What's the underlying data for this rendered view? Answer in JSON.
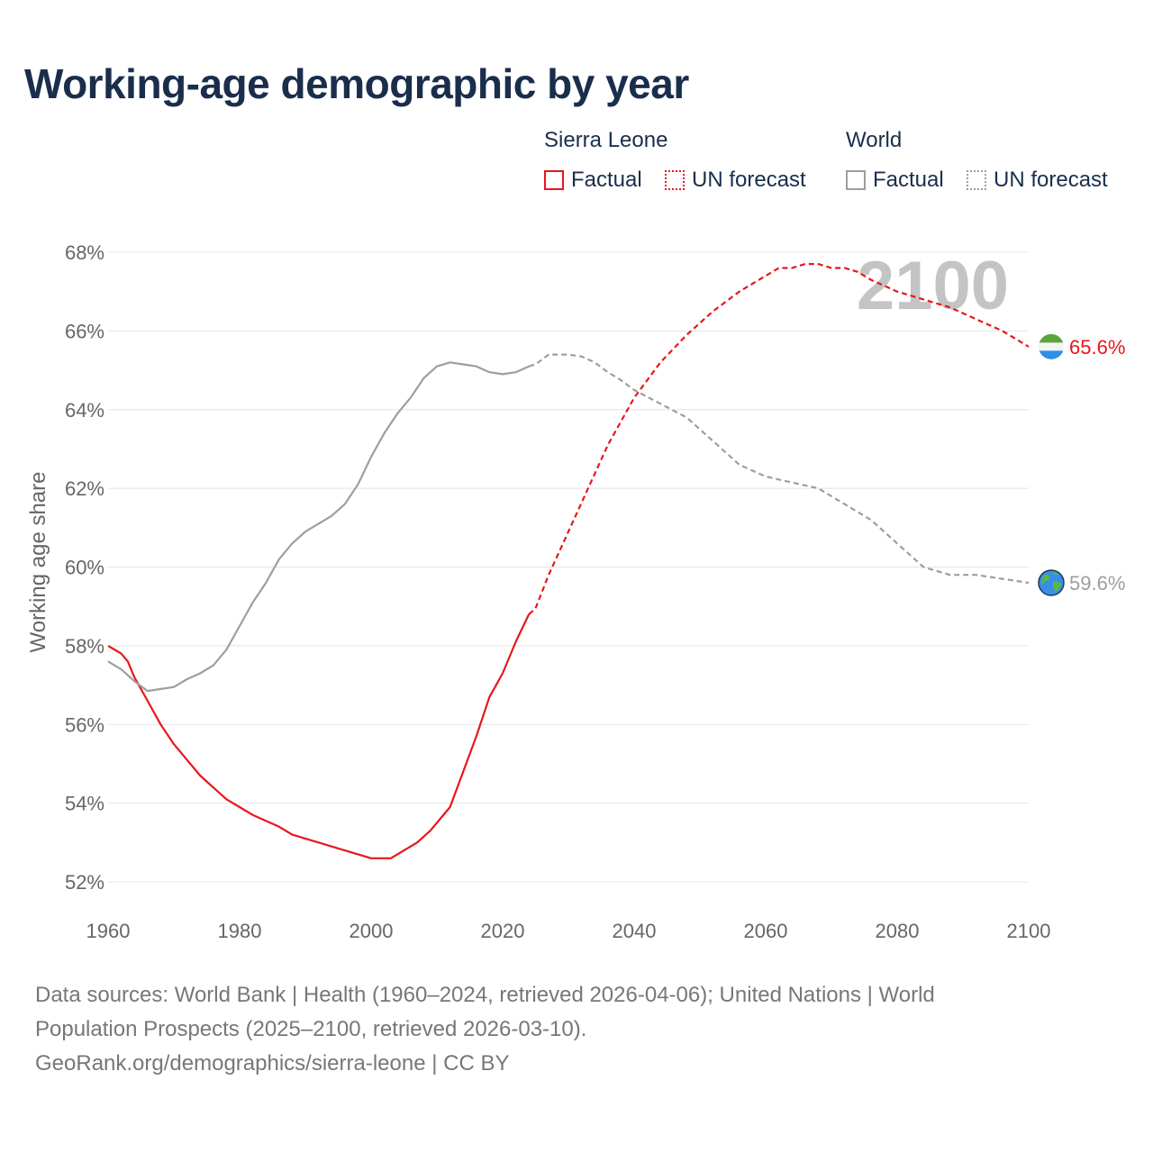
{
  "title": "Working-age demographic by year",
  "legend": {
    "groups": [
      {
        "name": "Sierra Leone",
        "factual": "Factual",
        "forecast": "UN forecast"
      },
      {
        "name": "World",
        "factual": "Factual",
        "forecast": "UN forecast"
      }
    ]
  },
  "colors": {
    "sierra_leone": "#e8161b",
    "world": "#9e9e9e",
    "grid": "#e4e4e4",
    "tick": "#666666",
    "year_watermark": "#c4c4c4"
  },
  "chart_data": {
    "type": "line",
    "title": "Working-age demographic by year",
    "ylabel": "Working age share",
    "xlabel": "",
    "xlim": [
      1960,
      2100
    ],
    "ylim": [
      52,
      68
    ],
    "x_ticks": [
      "1960",
      "1980",
      "2000",
      "2020",
      "2040",
      "2060",
      "2080",
      "2100"
    ],
    "y_ticks": [
      "52%",
      "54%",
      "56%",
      "58%",
      "60%",
      "62%",
      "64%",
      "66%",
      "68%"
    ],
    "current_year": "2100",
    "series": [
      {
        "name": "Sierra Leone",
        "end_label": "65.6%",
        "end_icon": "sierra-leone-flag-icon",
        "factual_range": [
          1960,
          2024
        ],
        "forecast_range": [
          2025,
          2100
        ],
        "points": [
          [
            1960,
            58.0
          ],
          [
            1962,
            57.8
          ],
          [
            1963,
            57.6
          ],
          [
            1964,
            57.2
          ],
          [
            1966,
            56.6
          ],
          [
            1968,
            56.0
          ],
          [
            1970,
            55.5
          ],
          [
            1972,
            55.1
          ],
          [
            1974,
            54.7
          ],
          [
            1976,
            54.4
          ],
          [
            1978,
            54.1
          ],
          [
            1980,
            53.9
          ],
          [
            1982,
            53.7
          ],
          [
            1984,
            53.55
          ],
          [
            1986,
            53.4
          ],
          [
            1988,
            53.2
          ],
          [
            1990,
            53.1
          ],
          [
            1992,
            53.0
          ],
          [
            1994,
            52.9
          ],
          [
            1996,
            52.8
          ],
          [
            1998,
            52.7
          ],
          [
            2000,
            52.6
          ],
          [
            2003,
            52.6
          ],
          [
            2005,
            52.8
          ],
          [
            2007,
            53.0
          ],
          [
            2009,
            53.3
          ],
          [
            2012,
            53.9
          ],
          [
            2014,
            54.8
          ],
          [
            2016,
            55.7
          ],
          [
            2018,
            56.7
          ],
          [
            2020,
            57.3
          ],
          [
            2022,
            58.1
          ],
          [
            2024,
            58.8
          ],
          [
            2025,
            58.95
          ],
          [
            2027,
            59.8
          ],
          [
            2030,
            60.9
          ],
          [
            2033,
            62.0
          ],
          [
            2036,
            63.1
          ],
          [
            2040,
            64.3
          ],
          [
            2044,
            65.2
          ],
          [
            2048,
            65.9
          ],
          [
            2052,
            66.5
          ],
          [
            2056,
            67.0
          ],
          [
            2060,
            67.4
          ],
          [
            2062,
            67.6
          ],
          [
            2064,
            67.6
          ],
          [
            2066,
            67.7
          ],
          [
            2068,
            67.7
          ],
          [
            2070,
            67.6
          ],
          [
            2072,
            67.6
          ],
          [
            2074,
            67.5
          ],
          [
            2076,
            67.3
          ],
          [
            2080,
            67.0
          ],
          [
            2084,
            66.8
          ],
          [
            2088,
            66.6
          ],
          [
            2092,
            66.3
          ],
          [
            2096,
            66.0
          ],
          [
            2098,
            65.8
          ],
          [
            2100,
            65.6
          ]
        ]
      },
      {
        "name": "World",
        "end_label": "59.6%",
        "end_icon": "globe-icon",
        "factual_range": [
          1960,
          2024
        ],
        "forecast_range": [
          2025,
          2100
        ],
        "points": [
          [
            1960,
            57.6
          ],
          [
            1962,
            57.4
          ],
          [
            1964,
            57.1
          ],
          [
            1966,
            56.85
          ],
          [
            1968,
            56.9
          ],
          [
            1970,
            56.95
          ],
          [
            1972,
            57.15
          ],
          [
            1974,
            57.3
          ],
          [
            1976,
            57.5
          ],
          [
            1978,
            57.9
          ],
          [
            1980,
            58.5
          ],
          [
            1982,
            59.1
          ],
          [
            1984,
            59.6
          ],
          [
            1986,
            60.2
          ],
          [
            1988,
            60.6
          ],
          [
            1990,
            60.9
          ],
          [
            1992,
            61.1
          ],
          [
            1994,
            61.3
          ],
          [
            1996,
            61.6
          ],
          [
            1998,
            62.1
          ],
          [
            2000,
            62.8
          ],
          [
            2002,
            63.4
          ],
          [
            2004,
            63.9
          ],
          [
            2006,
            64.3
          ],
          [
            2008,
            64.8
          ],
          [
            2010,
            65.1
          ],
          [
            2012,
            65.2
          ],
          [
            2014,
            65.15
          ],
          [
            2016,
            65.1
          ],
          [
            2018,
            64.95
          ],
          [
            2020,
            64.9
          ],
          [
            2022,
            64.95
          ],
          [
            2024,
            65.1
          ],
          [
            2025,
            65.15
          ],
          [
            2027,
            65.4
          ],
          [
            2030,
            65.4
          ],
          [
            2032,
            65.35
          ],
          [
            2034,
            65.2
          ],
          [
            2036,
            64.95
          ],
          [
            2038,
            64.75
          ],
          [
            2040,
            64.5
          ],
          [
            2044,
            64.15
          ],
          [
            2048,
            63.8
          ],
          [
            2052,
            63.2
          ],
          [
            2056,
            62.6
          ],
          [
            2060,
            62.3
          ],
          [
            2064,
            62.15
          ],
          [
            2068,
            62.0
          ],
          [
            2072,
            61.6
          ],
          [
            2076,
            61.2
          ],
          [
            2080,
            60.6
          ],
          [
            2084,
            60.0
          ],
          [
            2088,
            59.8
          ],
          [
            2092,
            59.8
          ],
          [
            2096,
            59.7
          ],
          [
            2098,
            59.65
          ],
          [
            2100,
            59.6
          ]
        ]
      }
    ]
  },
  "footer": {
    "line1": "Data sources: World Bank | Health (1960–2024, retrieved 2026-04-06); United Nations | World",
    "line2": "Population Prospects (2025–2100, retrieved 2026-03-10).",
    "line3": "GeoRank.org/demographics/sierra-leone | CC BY"
  }
}
